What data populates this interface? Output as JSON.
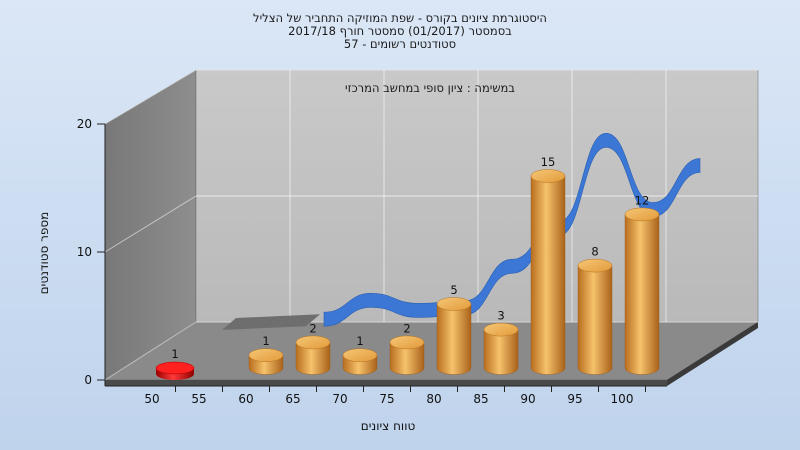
{
  "chart_data": {
    "type": "bar",
    "title_lines": [
      "היסטוגרמת ציונים בקורס - שפת המוזיקה התחביר של הצליל",
      "בסמסטר  (01/2017)  סמסטר חורף  2017/18",
      "סטודנטים רשומים - 57"
    ],
    "subtitle": "במשימה : ציון סופי במחשב המרכזי",
    "xlabel": "טווח ציונים",
    "ylabel": "מספר סטודנטים",
    "ylim": [
      0,
      20
    ],
    "y_ticks": [
      "0",
      "10",
      "20"
    ],
    "categories": [
      "50",
      "55",
      "60",
      "65",
      "70",
      "75",
      "80",
      "85",
      "90",
      "95",
      "100"
    ],
    "values": [
      1,
      0,
      1,
      2,
      1,
      2,
      5,
      3,
      15,
      8,
      12
    ],
    "value_labels": [
      "1",
      "",
      "1",
      "2",
      "1",
      "2",
      "5",
      "3",
      "15",
      "8",
      "12"
    ],
    "highlight_category": "50",
    "highlight_color": "#d81010",
    "bar_color": "#e9a443",
    "curve_color": "#3c77d6",
    "curve_values": [
      0,
      0,
      0,
      0.3,
      1.8,
      1.0,
      1.2,
      4.5,
      7.5,
      14.5,
      9.0,
      12.5
    ],
    "grid": true,
    "legend": "none"
  }
}
